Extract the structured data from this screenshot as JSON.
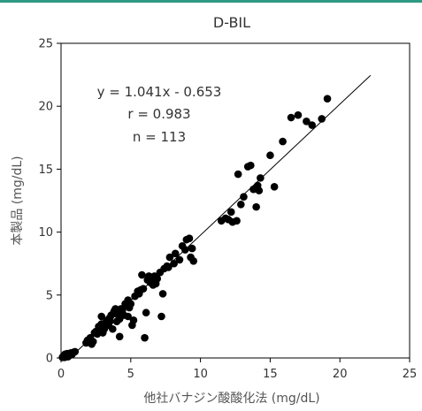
{
  "chart_data": {
    "type": "scatter",
    "title": "D-BIL",
    "xlabel": "他社バナジン酸酸化法 (mg/dL)",
    "ylabel": "本製品 (mg/dL)",
    "xlim": [
      0,
      25
    ],
    "ylim": [
      0,
      25
    ],
    "xticks": [
      0,
      5,
      10,
      15,
      20,
      25
    ],
    "yticks": [
      0,
      5,
      10,
      15,
      20,
      25
    ],
    "grid": false,
    "legend": "none",
    "annotations": {
      "equation": "y = 1.041x - 0.653",
      "r": "r = 0.983",
      "n": "n = 113"
    },
    "regression": {
      "slope": 1.041,
      "intercept": -0.653,
      "x_range": [
        0.6,
        22.2
      ]
    },
    "marker_color": "#000000",
    "points": [
      [
        0.1,
        0.05
      ],
      [
        0.15,
        0.1
      ],
      [
        0.2,
        0.2
      ],
      [
        0.25,
        0.05
      ],
      [
        0.3,
        0.3
      ],
      [
        0.35,
        0.15
      ],
      [
        0.4,
        0.25
      ],
      [
        0.45,
        0.35
      ],
      [
        0.5,
        0.1
      ],
      [
        0.55,
        0.3
      ],
      [
        0.6,
        0.2
      ],
      [
        0.7,
        0.4
      ],
      [
        0.8,
        0.3
      ],
      [
        0.9,
        0.45
      ],
      [
        1.0,
        0.5
      ],
      [
        1.8,
        1.2
      ],
      [
        2.1,
        1.6
      ],
      [
        2.2,
        1.1
      ],
      [
        2.3,
        1.3
      ],
      [
        2.6,
        1.9
      ],
      [
        2.7,
        2.5
      ],
      [
        2.8,
        2.2
      ],
      [
        2.9,
        3.3
      ],
      [
        3.0,
        2.6
      ],
      [
        3.1,
        2.3
      ],
      [
        3.2,
        2.8
      ],
      [
        3.4,
        2.6
      ],
      [
        3.5,
        3.2
      ],
      [
        3.7,
        2.3
      ],
      [
        3.8,
        3.7
      ],
      [
        3.9,
        3.9
      ],
      [
        4.0,
        2.9
      ],
      [
        4.1,
        3.6
      ],
      [
        4.2,
        1.7
      ],
      [
        4.2,
        3.1
      ],
      [
        4.3,
        3.9
      ],
      [
        4.5,
        3.4
      ],
      [
        4.6,
        4.3
      ],
      [
        4.7,
        4.2
      ],
      [
        4.8,
        3.3
      ],
      [
        4.9,
        4.0
      ],
      [
        5.0,
        4.3
      ],
      [
        5.1,
        2.6
      ],
      [
        5.2,
        3.0
      ],
      [
        5.5,
        5.3
      ],
      [
        5.8,
        6.6
      ],
      [
        5.9,
        5.5
      ],
      [
        6.0,
        1.6
      ],
      [
        6.1,
        3.6
      ],
      [
        6.2,
        6.2
      ],
      [
        6.3,
        6.5
      ],
      [
        6.4,
        6.0
      ],
      [
        6.7,
        6.5
      ],
      [
        7.1,
        6.8
      ],
      [
        7.2,
        3.3
      ],
      [
        7.3,
        5.1
      ],
      [
        7.4,
        7.1
      ],
      [
        7.6,
        7.3
      ],
      [
        7.8,
        8.0
      ],
      [
        8.2,
        8.3
      ],
      [
        8.5,
        7.8
      ],
      [
        8.9,
        8.6
      ],
      [
        9.0,
        9.4
      ],
      [
        9.2,
        9.5
      ],
      [
        9.3,
        8.0
      ],
      [
        9.4,
        8.7
      ],
      [
        9.5,
        7.7
      ],
      [
        11.5,
        10.9
      ],
      [
        11.8,
        11.1
      ],
      [
        12.0,
        11.0
      ],
      [
        12.3,
        10.8
      ],
      [
        12.6,
        10.9
      ],
      [
        12.9,
        12.2
      ],
      [
        12.7,
        14.6
      ],
      [
        13.4,
        15.2
      ],
      [
        13.6,
        15.3
      ],
      [
        13.8,
        13.4
      ],
      [
        14.0,
        12.0
      ],
      [
        14.1,
        13.7
      ],
      [
        14.2,
        13.3
      ],
      [
        14.3,
        14.3
      ],
      [
        15.0,
        16.1
      ],
      [
        15.3,
        13.6
      ],
      [
        15.9,
        17.2
      ],
      [
        16.5,
        19.1
      ],
      [
        17.0,
        19.3
      ],
      [
        17.6,
        18.8
      ],
      [
        18.0,
        18.5
      ],
      [
        18.7,
        19.0
      ],
      [
        19.1,
        20.6
      ],
      [
        3.3,
        3.0
      ],
      [
        3.6,
        3.4
      ],
      [
        4.4,
        3.8
      ],
      [
        5.3,
        4.9
      ],
      [
        5.6,
        5.1
      ],
      [
        6.5,
        6.1
      ],
      [
        6.9,
        6.3
      ],
      [
        7.7,
        7.2
      ],
      [
        8.1,
        7.5
      ],
      [
        2.5,
        2.1
      ],
      [
        2.4,
        2.0
      ],
      [
        1.9,
        1.4
      ],
      [
        3.0,
        2.0
      ],
      [
        4.8,
        4.6
      ],
      [
        5.7,
        5.4
      ],
      [
        6.6,
        5.8
      ],
      [
        8.7,
        8.9
      ],
      [
        12.2,
        11.6
      ],
      [
        13.1,
        12.8
      ],
      [
        4.0,
        3.5
      ],
      [
        3.5,
        2.9
      ],
      [
        2.9,
        2.7
      ],
      [
        6.8,
        5.9
      ]
    ]
  }
}
